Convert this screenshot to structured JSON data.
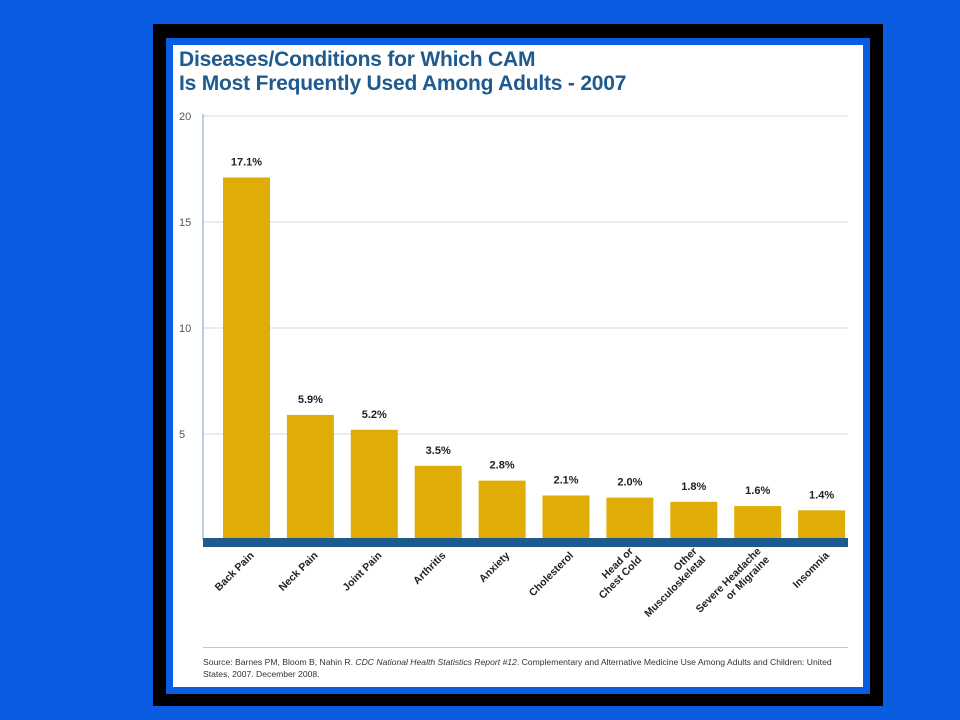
{
  "title_lines": [
    "Diseases/Conditions for Which CAM",
    "Is Most Frequently Used Among Adults - 2007"
  ],
  "source": {
    "prefix": "Source: Barnes PM, Bloom B, Nahin R. ",
    "italic": "CDC National Health Statistics Report #12",
    "suffix": ". Complementary and Alternative Medicine Use Among Adults and Children: United States, 2007. December 2008."
  },
  "colors": {
    "background": "#0a5de0",
    "bar": "#e1ac05",
    "baseline": "#1f5a8f",
    "title": "#1f5a8f",
    "gridline": "#cfdcea"
  },
  "chart_data": {
    "type": "bar",
    "title": "Diseases/Conditions for Which CAM Is Most Frequently Used Among Adults - 2007",
    "categories": [
      [
        "Back Pain"
      ],
      [
        "Neck Pain"
      ],
      [
        "Joint Pain"
      ],
      [
        "Arthritis"
      ],
      [
        "Anxiety"
      ],
      [
        "Cholesterol"
      ],
      [
        "Head or",
        "Chest Cold"
      ],
      [
        "Other",
        "Musculoskeletal"
      ],
      [
        "Severe Headache",
        "or Migraine"
      ],
      [
        "Insomnia"
      ]
    ],
    "values": [
      17.1,
      5.9,
      5.2,
      3.5,
      2.8,
      2.1,
      2.0,
      1.8,
      1.6,
      1.4
    ],
    "data_labels": [
      "17.1%",
      "5.9%",
      "5.2%",
      "3.5%",
      "2.8%",
      "2.1%",
      "2.0%",
      "1.8%",
      "1.6%",
      "1.4%"
    ],
    "y_ticks": [
      5,
      10,
      15,
      20
    ],
    "ylim": [
      0,
      20
    ],
    "grid": true,
    "legend": "none"
  }
}
